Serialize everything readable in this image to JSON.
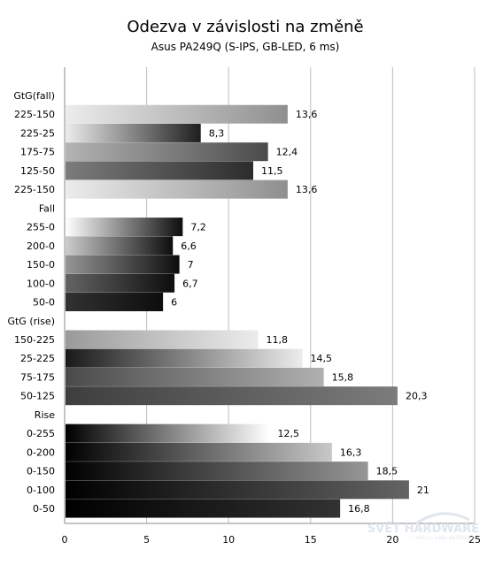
{
  "chart_data": {
    "type": "bar",
    "orientation": "horizontal",
    "title": "Odezva v závislosti na změně",
    "subtitle": "Asus PA249Q  (S-IPS, GB-LED, 6 ms)",
    "xlim": [
      0,
      25
    ],
    "x_ticks": [
      "0",
      "5",
      "10",
      "15",
      "20",
      "25"
    ],
    "grid": "vertical",
    "rows": [
      {
        "category": "GtG(fall)",
        "value": null,
        "value_label": "",
        "style": "header",
        "color_from": "",
        "color_to": ""
      },
      {
        "category": "225-150",
        "value": 13.6,
        "value_label": "13,6",
        "style": "bar",
        "color_from": "#ececec",
        "color_to": "#8f8f8f"
      },
      {
        "category": "225-25",
        "value": 8.3,
        "value_label": "8,3",
        "style": "bar",
        "color_from": "#ececec",
        "color_to": "#1e1e1e"
      },
      {
        "category": "175-75",
        "value": 12.4,
        "value_label": "12,4",
        "style": "bar",
        "color_from": "#b4b4b4",
        "color_to": "#4a4a4a"
      },
      {
        "category": "125-50",
        "value": 11.5,
        "value_label": "11,5",
        "style": "bar",
        "color_from": "#7c7c7c",
        "color_to": "#2c2c2c"
      },
      {
        "category": "225-150",
        "value": 13.6,
        "value_label": "13,6",
        "style": "bar",
        "color_from": "#ececec",
        "color_to": "#8f8f8f"
      },
      {
        "category": "Fall",
        "value": null,
        "value_label": "",
        "style": "header",
        "color_from": "",
        "color_to": ""
      },
      {
        "category": "255-0",
        "value": 7.2,
        "value_label": "7,2",
        "style": "bar",
        "color_from": "#ffffff",
        "color_to": "#0d0d0d"
      },
      {
        "category": "200-0",
        "value": 6.6,
        "value_label": "6,6",
        "style": "bar",
        "color_from": "#cccccc",
        "color_to": "#0d0d0d"
      },
      {
        "category": "150-0",
        "value": 7,
        "value_label": "7",
        "style": "bar",
        "color_from": "#969696",
        "color_to": "#0d0d0d"
      },
      {
        "category": "100-0",
        "value": 6.7,
        "value_label": "6,7",
        "style": "bar",
        "color_from": "#646464",
        "color_to": "#0d0d0d"
      },
      {
        "category": "50-0",
        "value": 6,
        "value_label": "6",
        "style": "bar",
        "color_from": "#323232",
        "color_to": "#0d0d0d"
      },
      {
        "category": "GtG (rise)",
        "value": null,
        "value_label": "",
        "style": "header",
        "color_from": "",
        "color_to": ""
      },
      {
        "category": "150-225",
        "value": 11.8,
        "value_label": "11,8",
        "style": "bar",
        "color_from": "#9a9a9a",
        "color_to": "#ececec"
      },
      {
        "category": "25-225",
        "value": 14.5,
        "value_label": "14,5",
        "style": "bar",
        "color_from": "#1a1a1a",
        "color_to": "#ececec"
      },
      {
        "category": "75-175",
        "value": 15.8,
        "value_label": "15,8",
        "style": "bar",
        "color_from": "#4a4a4a",
        "color_to": "#b0b0b0"
      },
      {
        "category": "50-125",
        "value": 20.3,
        "value_label": "20,3",
        "style": "bar",
        "color_from": "#3e3e3e",
        "color_to": "#7c7c7c"
      },
      {
        "category": "Rise",
        "value": null,
        "value_label": "",
        "style": "header",
        "color_from": "",
        "color_to": ""
      },
      {
        "category": "0-255",
        "value": 12.5,
        "value_label": "12,5",
        "style": "bar",
        "color_from": "#000000",
        "color_to": "#ffffff"
      },
      {
        "category": "0-200",
        "value": 16.3,
        "value_label": "16,3",
        "style": "bar",
        "color_from": "#000000",
        "color_to": "#c8c8c8"
      },
      {
        "category": "0-150",
        "value": 18.5,
        "value_label": "18,5",
        "style": "bar",
        "color_from": "#000000",
        "color_to": "#969696"
      },
      {
        "category": "0-100",
        "value": 21,
        "value_label": "21",
        "style": "bar",
        "color_from": "#000000",
        "color_to": "#646464"
      },
      {
        "category": "0-50",
        "value": 16.8,
        "value_label": "16,8",
        "style": "bar",
        "color_from": "#000000",
        "color_to": "#323232"
      }
    ]
  },
  "watermark": {
    "main_text": "SVĚT HARDWARE",
    "sub_text": "... víte co vaše počítače!"
  }
}
